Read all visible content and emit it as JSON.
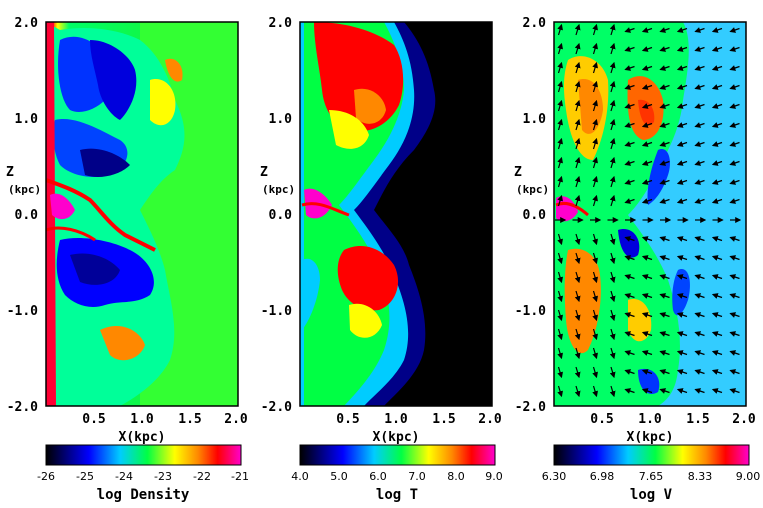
{
  "colors": {
    "black": "#000000",
    "navy": "#00008b",
    "blue": "#0000ff",
    "cyan": "#00ccff",
    "green": "#00ff44",
    "yellow": "#ffff00",
    "orange": "#ff8800",
    "red": "#ff0000",
    "magenta": "#ff00cc",
    "background": "#ffffff"
  },
  "panels": [
    {
      "zlabel": "Z",
      "zunit": "(kpc)",
      "xlabel": "X(kpc)",
      "xticks": [
        "0.5",
        "1.0",
        "1.5",
        "2.0"
      ],
      "zticks": [
        "2.0",
        "1.0",
        "0.0",
        "-1.0",
        "-2.0"
      ],
      "colorbar_ticks": [
        "-26",
        "-25",
        "-24",
        "-23",
        "-22",
        "-21"
      ],
      "colorbar_label": "log Density"
    },
    {
      "zlabel": "Z",
      "zunit": "(kpc)",
      "xlabel": "X(kpc)",
      "xticks": [
        "0.5",
        "1.0",
        "1.5",
        "2.0"
      ],
      "zticks": [
        "2.0",
        "1.0",
        "0.0",
        "-1.0",
        "-2.0"
      ],
      "colorbar_ticks": [
        "4.0",
        "5.0",
        "6.0",
        "7.0",
        "8.0",
        "9.0"
      ],
      "colorbar_label": "log T"
    },
    {
      "zlabel": "Z",
      "zunit": "(kpc)",
      "xlabel": "X(kpc)",
      "xticks": [
        "0.5",
        "1.0",
        "1.5",
        "2.0"
      ],
      "zticks": [
        "2.0",
        "1.0",
        "0.0",
        "-1.0",
        "-2.0"
      ],
      "colorbar_ticks": [
        "6.30",
        "6.98",
        "7.65",
        "8.33",
        "9.00"
      ],
      "colorbar_label": "log V"
    }
  ]
}
